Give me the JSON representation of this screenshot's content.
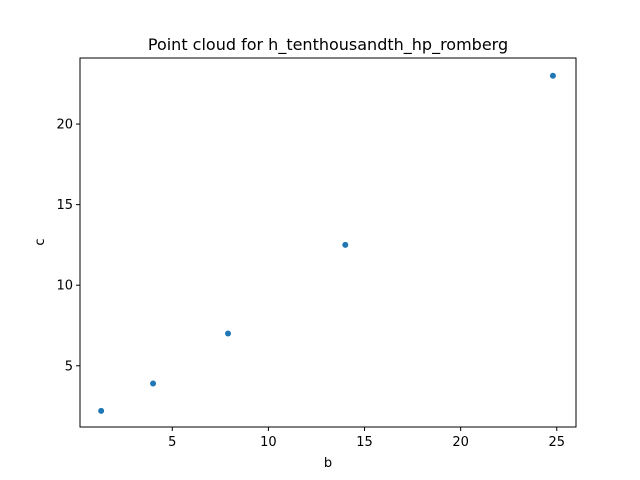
{
  "chart_data": {
    "type": "scatter",
    "title": "Point cloud for h_tenthousandth_hp_romberg",
    "xlabel": "b",
    "ylabel": "c",
    "xlim": [
      0.2,
      26.0
    ],
    "ylim": [
      1.2,
      24.1
    ],
    "xticks": [
      5,
      10,
      15,
      20,
      25
    ],
    "yticks": [
      5,
      10,
      15,
      20
    ],
    "grid": false,
    "legend": "none",
    "point_color": "#1f77b4",
    "points": [
      {
        "x": 1.3,
        "y": 2.2
      },
      {
        "x": 4.0,
        "y": 3.9
      },
      {
        "x": 7.9,
        "y": 7.0
      },
      {
        "x": 14.0,
        "y": 12.5
      },
      {
        "x": 24.8,
        "y": 23.0
      }
    ]
  }
}
